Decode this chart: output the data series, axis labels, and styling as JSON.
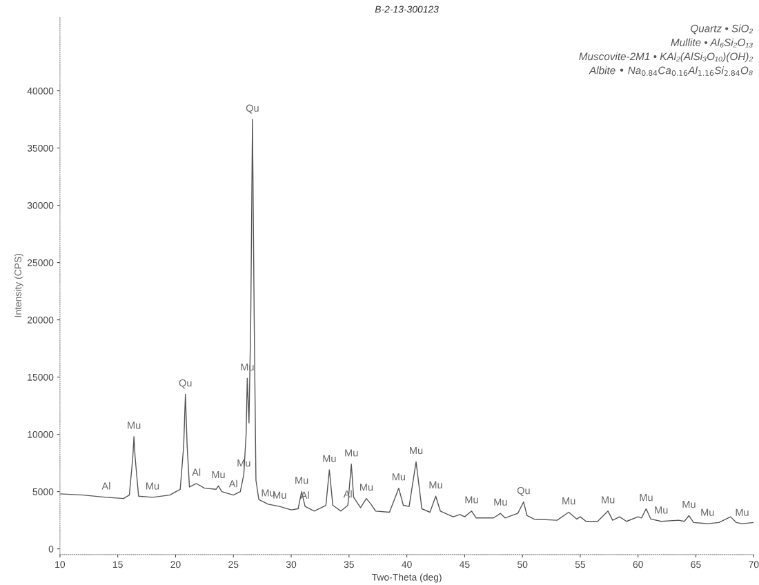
{
  "chart_data": {
    "type": "line",
    "title": "B-2-13-300123",
    "xlabel": "Two-Theta (deg)",
    "ylabel": "Intensity (CPS)",
    "x": [
      10,
      12,
      14,
      15.5,
      16.0,
      16.3,
      16.4,
      16.5,
      16.8,
      18,
      19.5,
      20.4,
      20.7,
      20.85,
      21.0,
      21.2,
      21.8,
      22.5,
      23.5,
      23.7,
      24,
      25,
      25.6,
      25.9,
      26.1,
      26.2,
      26.35,
      26.5,
      26.65,
      26.8,
      26.95,
      27.2,
      28,
      29,
      30,
      30.6,
      30.9,
      31.2,
      32,
      33.0,
      33.3,
      33.6,
      34.3,
      34.9,
      35.2,
      35.4,
      36,
      36.5,
      36.9,
      37.3,
      38.5,
      39.3,
      39.7,
      40.2,
      40.8,
      41.3,
      42,
      42.5,
      42.9,
      44,
      44.6,
      45,
      45.6,
      46,
      47.5,
      48.1,
      48.5,
      49.3,
      49.6,
      50.1,
      50.4,
      51,
      53,
      54,
      54.7,
      55,
      55.5,
      56.5,
      57.4,
      57.8,
      58.4,
      59,
      60,
      60.3,
      60.7,
      61.1,
      62,
      63.5,
      64,
      64.4,
      64.8,
      66,
      67,
      68,
      68.5,
      69,
      70
    ],
    "series": [
      {
        "color": "#555555",
        "values": [
          4800,
          4700,
          4500,
          4400,
          4700,
          8000,
          9800,
          8000,
          4600,
          4500,
          4700,
          5200,
          9000,
          13500,
          9000,
          5400,
          5700,
          5300,
          5200,
          5500,
          5000,
          4700,
          5000,
          6500,
          10000,
          14900,
          11000,
          20000,
          37500,
          20000,
          6000,
          4300,
          3900,
          3700,
          3400,
          3500,
          5000,
          3700,
          3300,
          3800,
          6900,
          3800,
          3300,
          3800,
          7400,
          4500,
          3600,
          4400,
          3900,
          3300,
          3200,
          5300,
          3800,
          3700,
          7600,
          3500,
          3200,
          4600,
          3300,
          2800,
          3000,
          2800,
          3300,
          2700,
          2700,
          3100,
          2700,
          3000,
          3100,
          4100,
          2900,
          2600,
          2500,
          3200,
          2600,
          2800,
          2400,
          2400,
          3300,
          2500,
          2800,
          2400,
          2800,
          2700,
          3500,
          2600,
          2400,
          2500,
          2400,
          2900,
          2300,
          2200,
          2300,
          2800,
          2300,
          2200,
          2300
        ]
      }
    ],
    "xlim": [
      10,
      70
    ],
    "ylim": [
      -500,
      46500
    ],
    "xticks": [
      10,
      15,
      20,
      25,
      30,
      35,
      40,
      45,
      50,
      55,
      60,
      65,
      70
    ],
    "yticks": [
      0,
      5000,
      10000,
      15000,
      20000,
      25000,
      30000,
      35000,
      40000
    ],
    "grid": false,
    "legend": false,
    "marker": "none",
    "line_style": "solid",
    "annotations": [
      "Quartz • SiO₂",
      "Mullite • Al₆Si₂O₁₃",
      "Muscovite-2M1 • KAl₂(AlSi₃O₁₀)(OH)₂",
      "Albite • Na$_{0.84}$Ca$_{0.16}$Al$_{1.16}$Si$_{2.84}$O₈",
      {
        "text": "Al",
        "x": 14,
        "y": 4500
      },
      {
        "text": "Mu",
        "x": 16.4,
        "y": 9800
      },
      {
        "text": "Mu",
        "x": 18,
        "y": 4500
      },
      {
        "text": "Qu",
        "x": 20.85,
        "y": 13500
      },
      {
        "text": "Al",
        "x": 21.8,
        "y": 5700
      },
      {
        "text": "Mu",
        "x": 23.7,
        "y": 5500
      },
      {
        "text": "Al",
        "x": 25,
        "y": 4700
      },
      {
        "text": "Mu",
        "x": 26.2,
        "y": 14900
      },
      {
        "text": "Mu",
        "x": 25.9,
        "y": 6500
      },
      {
        "text": "Qu",
        "x": 26.65,
        "y": 37500
      },
      {
        "text": "Mu",
        "x": 28,
        "y": 3900
      },
      {
        "text": "Mu",
        "x": 29,
        "y": 3700
      },
      {
        "text": "Mu",
        "x": 30.9,
        "y": 5000
      },
      {
        "text": "Al",
        "x": 31.2,
        "y": 3700
      },
      {
        "text": "Mu",
        "x": 33.3,
        "y": 6900
      },
      {
        "text": "Al",
        "x": 34.9,
        "y": 3800
      },
      {
        "text": "Mu",
        "x": 35.2,
        "y": 7400
      },
      {
        "text": "Mu",
        "x": 36.5,
        "y": 4400
      },
      {
        "text": "Mu",
        "x": 39.3,
        "y": 5300
      },
      {
        "text": "Mu",
        "x": 40.8,
        "y": 7600
      },
      {
        "text": "Mu",
        "x": 42.5,
        "y": 4600
      },
      {
        "text": "Mu",
        "x": 45.6,
        "y": 3300
      },
      {
        "text": "Mu",
        "x": 48.1,
        "y": 3100
      },
      {
        "text": "Qu",
        "x": 50.1,
        "y": 4100
      },
      {
        "text": "Mu",
        "x": 54,
        "y": 3200
      },
      {
        "text": "Mu",
        "x": 57.4,
        "y": 3300
      },
      {
        "text": "Mu",
        "x": 60.7,
        "y": 3500
      },
      {
        "text": "Mu",
        "x": 62,
        "y": 2400
      },
      {
        "text": "Mu",
        "x": 64.4,
        "y": 2900
      },
      {
        "text": "Mu",
        "x": 66,
        "y": 2200
      },
      {
        "text": "Mu",
        "x": 69,
        "y": 2200
      }
    ]
  }
}
